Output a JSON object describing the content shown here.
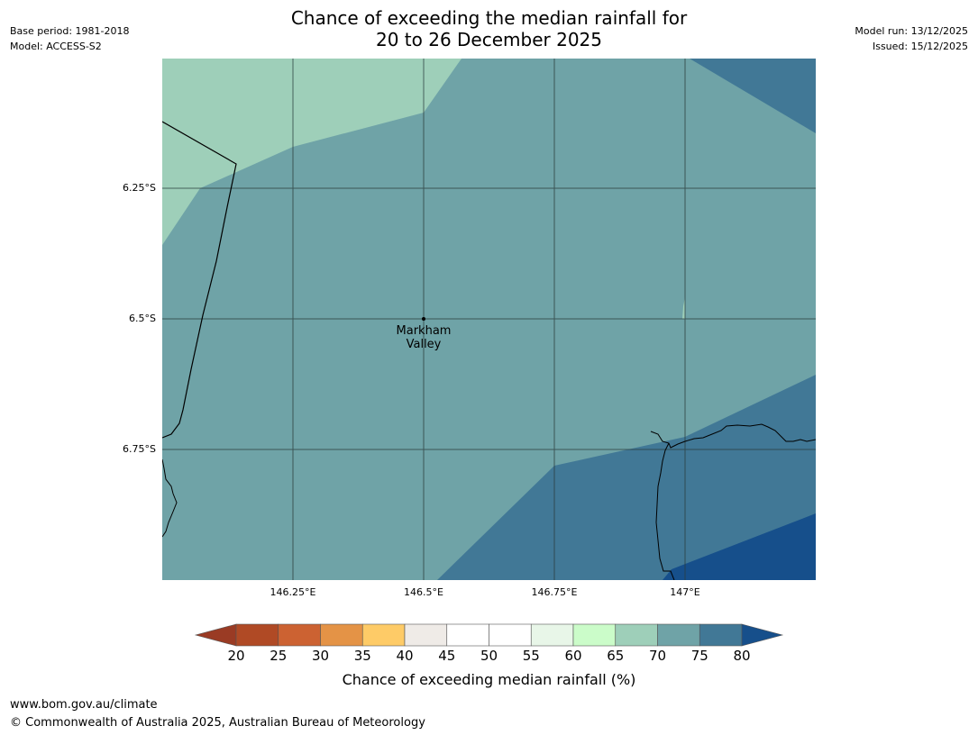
{
  "header": {
    "title_line1": "Chance of exceeding the median rainfall for",
    "title_line2": "20 to 26 December 2025",
    "base_period": "Base period: 1981-2018",
    "model": "Model: ACCESS-S2",
    "model_run": "Model run: 13/12/2025",
    "issued": "Issued: 15/12/2025"
  },
  "map": {
    "lat_labels": [
      "6.25°S",
      "6.5°S",
      "6.75°S"
    ],
    "lon_labels": [
      "146.25°E",
      "146.5°E",
      "146.75°E",
      "147°E"
    ],
    "place": {
      "line1": "Markham",
      "line2": "Valley"
    }
  },
  "colorbar": {
    "title": "Chance of exceeding median rainfall (%)",
    "ticks": [
      "20",
      "25",
      "30",
      "35",
      "40",
      "45",
      "50",
      "55",
      "60",
      "65",
      "70",
      "75",
      "80"
    ],
    "colors": [
      "#b04a25",
      "#cc6232",
      "#e49346",
      "#fecb67",
      "#efebe7",
      "#ffffff",
      "#ffffff",
      "#e8f6e8",
      "#cbfcc9",
      "#9ecfb9",
      "#6fa3a7",
      "#417896"
    ],
    "under_color": "#9a3b24",
    "over_color": "#164f8b"
  },
  "footer": {
    "url": "www.bom.gov.au/climate",
    "copyright": "© Commonwealth of Australia 2025, Australian Bureau of Meteorology"
  }
}
